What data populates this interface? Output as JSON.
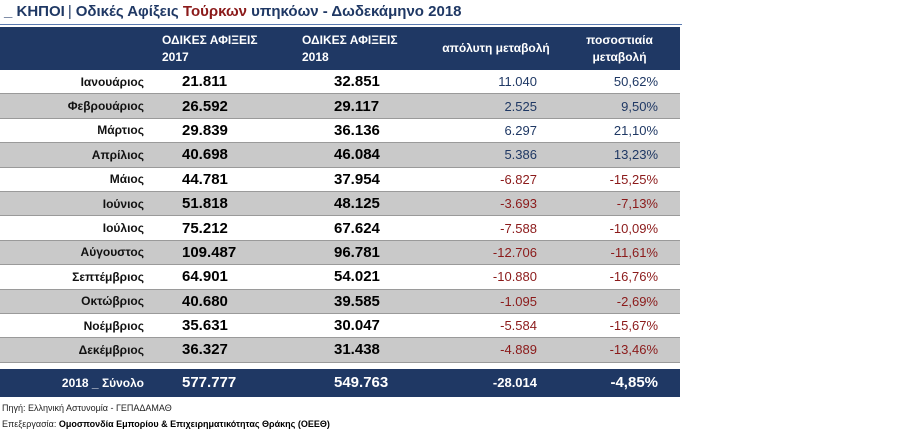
{
  "title": {
    "prefix": "_ ΚΗΠΟΙ",
    "separator": "|",
    "text_before": "Οδικές Αφίξεις ",
    "highlight": "Τούρκων",
    "text_after": " υπηκόων - Δωδεκάμηνο 2018"
  },
  "table": {
    "headers": {
      "month": "",
      "arrivals_2017": "ΟΔΙΚΕΣ ΑΦΙΞΕΙΣ 2017",
      "arrivals_2018": "ΟΔΙΚΕΣ ΑΦΙΞΕΙΣ  2018",
      "abs_change": "απόλυτη μεταβολή",
      "pct_change": "ποσοστιαία μεταβολή"
    },
    "rows": [
      {
        "month": "Ιανουάριος",
        "v2017": "21.811",
        "v2018": "32.851",
        "abs": "11.040",
        "pct": "50,62%",
        "trend": "pos"
      },
      {
        "month": "Φεβρουάριος",
        "v2017": "26.592",
        "v2018": "29.117",
        "abs": "2.525",
        "pct": "9,50%",
        "trend": "pos"
      },
      {
        "month": "Μάρτιος",
        "v2017": "29.839",
        "v2018": "36.136",
        "abs": "6.297",
        "pct": "21,10%",
        "trend": "pos"
      },
      {
        "month": "Απρίλιος",
        "v2017": "40.698",
        "v2018": "46.084",
        "abs": "5.386",
        "pct": "13,23%",
        "trend": "pos"
      },
      {
        "month": "Μάιος",
        "v2017": "44.781",
        "v2018": "37.954",
        "abs": "-6.827",
        "pct": "-15,25%",
        "trend": "neg"
      },
      {
        "month": "Ιούνιος",
        "v2017": "51.818",
        "v2018": "48.125",
        "abs": "-3.693",
        "pct": "-7,13%",
        "trend": "neg"
      },
      {
        "month": "Ιούλιος",
        "v2017": "75.212",
        "v2018": "67.624",
        "abs": "-7.588",
        "pct": "-10,09%",
        "trend": "neg"
      },
      {
        "month": "Αύγουστος",
        "v2017": "109.487",
        "v2018": "96.781",
        "abs": "-12.706",
        "pct": "-11,61%",
        "trend": "neg"
      },
      {
        "month": "Σεπτέμβριος",
        "v2017": "64.901",
        "v2018": "54.021",
        "abs": "-10.880",
        "pct": "-16,76%",
        "trend": "neg"
      },
      {
        "month": "Οκτώβριος",
        "v2017": "40.680",
        "v2018": "39.585",
        "abs": "-1.095",
        "pct": "-2,69%",
        "trend": "neg"
      },
      {
        "month": "Νοέμβριος",
        "v2017": "35.631",
        "v2018": "30.047",
        "abs": "-5.584",
        "pct": "-15,67%",
        "trend": "neg"
      },
      {
        "month": "Δεκέμβριος",
        "v2017": "36.327",
        "v2018": "31.438",
        "abs": "-4.889",
        "pct": "-13,46%",
        "trend": "neg"
      }
    ],
    "total": {
      "label": "2018 _ Σύνολο",
      "v2017": "577.777",
      "v2018": "549.763",
      "abs": "-28.014",
      "pct": "-4,85%"
    }
  },
  "footer": {
    "source": "Πηγή: Ελληνική Αστυνομία - ΓΕΠΑΔΑΜΑΘ",
    "editor_label": "Επεξεργασία: ",
    "editor_name": "Ομοσπονδία Εμπορίου & Επιχειρηματικότητας Θράκης (ΟΕΕΘ)"
  },
  "colors": {
    "header_bg": "#1f3864",
    "positive": "#1f3864",
    "negative": "#8b1a1a",
    "alt_row": "#c9c9c9"
  }
}
